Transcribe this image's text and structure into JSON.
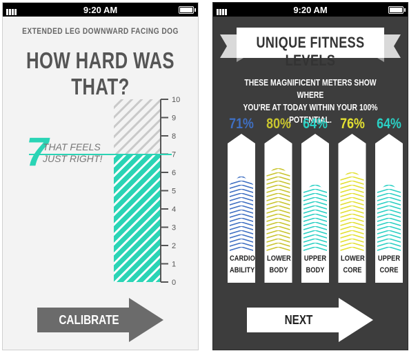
{
  "status_bar": {
    "time": "9:20 AM"
  },
  "calibrate_screen": {
    "exercise_name": "EXTENDED LEG DOWNWARD FACING DOG",
    "question": "HOW HARD WAS THAT?",
    "scale_ticks": [
      "10",
      "9",
      "8",
      "7",
      "6",
      "5",
      "4",
      "3",
      "2",
      "1",
      "0"
    ],
    "scale_max": 10,
    "selected_value": 7,
    "selected_number": "7",
    "selected_caption_line1": "THAT FEELS",
    "selected_caption_line2": "JUST RIGHT!",
    "button_label": "CALIBRATE",
    "colors": {
      "accent": "#2ad4b5",
      "text": "#555555",
      "button": "#6b6b6b"
    }
  },
  "fitness_screen": {
    "banner_title": "UNIQUE FITNESS LEVELS",
    "subtitle_line1": "THESE MAGNIFICENT METERS SHOW WHERE",
    "subtitle_line2": "YOU'RE AT TODAY WITHIN YOUR 100% POTENTIAL.",
    "meters": [
      {
        "percent": "71%",
        "value": 71,
        "line1": "CARDIO",
        "line2": "ABILITY",
        "color": "#3f6fc2"
      },
      {
        "percent": "80%",
        "value": 80,
        "line1": "LOWER",
        "line2": "BODY",
        "color": "#c9c52e"
      },
      {
        "percent": "64%",
        "value": 64,
        "line1": "UPPER",
        "line2": "BODY",
        "color": "#2ad0c4"
      },
      {
        "percent": "76%",
        "value": 76,
        "line1": "LOWER",
        "line2": "CORE",
        "color": "#e3e032"
      },
      {
        "percent": "64%",
        "value": 64,
        "line1": "UPPER",
        "line2": "CORE",
        "color": "#2ad0c4"
      }
    ],
    "button_label": "NEXT"
  }
}
